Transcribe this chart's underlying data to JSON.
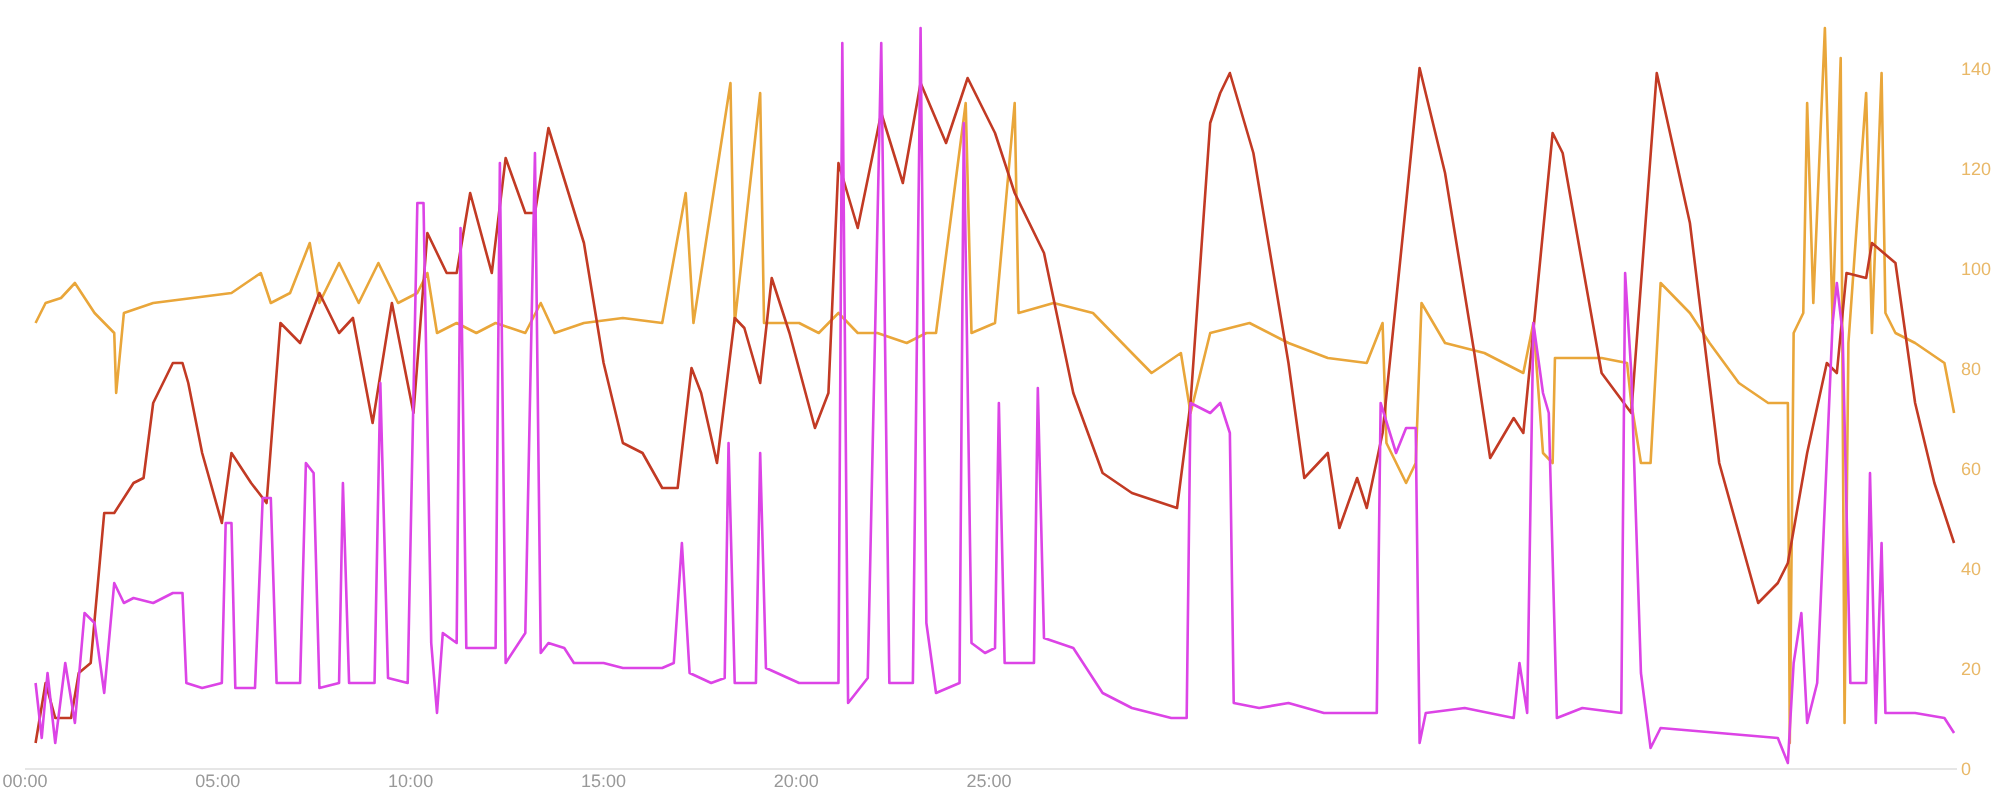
{
  "chart_data": {
    "type": "line",
    "xlim": [
      0,
      50.1
    ],
    "ylim": [
      0,
      152
    ],
    "xticks": [
      {
        "value": 0,
        "label": "00:00"
      },
      {
        "value": 5,
        "label": "05:00"
      },
      {
        "value": 10,
        "label": "10:00"
      },
      {
        "value": 15,
        "label": "15:00"
      },
      {
        "value": 20,
        "label": "20:00"
      },
      {
        "value": 25,
        "label": "25:00"
      }
    ],
    "yticks": [
      0,
      20,
      40,
      60,
      80,
      100,
      120,
      140
    ],
    "grid": false,
    "line_style": "solid",
    "marker": "none",
    "series": [
      {
        "color": "#e9a63a",
        "x": [
          0.3,
          0.56,
          0.96,
          1.32,
          1.83,
          2.34,
          2.39,
          2.59,
          3.35,
          4.37,
          5.38,
          6.14,
          6.4,
          6.9,
          7.41,
          7.66,
          8.17,
          8.68,
          9.19,
          9.7,
          10.2,
          10.46,
          10.71,
          11.22,
          11.73,
          12.23,
          13.0,
          13.4,
          13.76,
          14.52,
          15.53,
          16.55,
          17.16,
          17.36,
          18.32,
          18.43,
          19.09,
          19.19,
          20.1,
          20.61,
          21.12,
          21.62,
          22.13,
          22.89,
          23.4,
          23.65,
          24.42,
          24.57,
          25.18,
          25.69,
          25.79,
          26.7,
          27.72,
          28.73,
          29.24,
          30.0,
          30.25,
          30.76,
          31.78,
          32.79,
          33.81,
          34.82,
          35.23,
          35.33,
          35.84,
          36.09,
          36.24,
          36.85,
          37.87,
          38.88,
          39.14,
          39.39,
          39.64,
          39.7,
          40.91,
          41.57,
          41.68,
          41.93,
          42.18,
          42.44,
          43.2,
          43.71,
          44.47,
          45.23,
          45.74,
          45.79,
          45.89,
          46.14,
          46.24,
          46.4,
          46.7,
          46.9,
          47.11,
          47.21,
          47.31,
          47.77,
          47.92,
          48.17,
          48.27,
          48.53,
          49.04,
          49.8,
          50.05
        ],
        "values": [
          89,
          93,
          94,
          97,
          91,
          87,
          75,
          91,
          93,
          94,
          95,
          99,
          93,
          95,
          105,
          93,
          101,
          93,
          101,
          93,
          95,
          99,
          87,
          89,
          87,
          89,
          87,
          93,
          87,
          89,
          90,
          89,
          115,
          89,
          137,
          89,
          135,
          89,
          89,
          87,
          91,
          87,
          87,
          85,
          87,
          87,
          133,
          87,
          89,
          133,
          91,
          93,
          91,
          83,
          79,
          83,
          71,
          87,
          89,
          85,
          82,
          81,
          89,
          65,
          57,
          61,
          93,
          85,
          83,
          79,
          89,
          63,
          61,
          82,
          82,
          81,
          73,
          61,
          61,
          97,
          91,
          85,
          77,
          73,
          73,
          5,
          87,
          91,
          133,
          93,
          148,
          89,
          142,
          9,
          85,
          135,
          87,
          139,
          91,
          87,
          85,
          81,
          71
        ]
      },
      {
        "color": "#c23a24",
        "x": [
          0.3,
          0.56,
          0.81,
          1.22,
          1.42,
          1.73,
          2.08,
          2.34,
          2.84,
          3.1,
          3.35,
          3.86,
          4.11,
          4.26,
          4.62,
          5.13,
          5.38,
          5.89,
          6.29,
          6.65,
          7.16,
          7.66,
          8.17,
          8.53,
          9.04,
          9.54,
          10.1,
          10.46,
          10.96,
          11.22,
          11.57,
          12.13,
          12.49,
          13.0,
          13.25,
          13.6,
          14.52,
          15.03,
          15.53,
          16.04,
          16.55,
          16.95,
          17.31,
          17.56,
          17.97,
          18.43,
          18.68,
          19.09,
          19.39,
          19.85,
          20.51,
          20.86,
          21.12,
          21.62,
          22.23,
          22.79,
          23.25,
          23.91,
          24.47,
          25.18,
          25.69,
          26.45,
          27.21,
          27.97,
          28.73,
          29.9,
          30.25,
          30.76,
          31.02,
          31.27,
          31.88,
          32.79,
          33.2,
          33.81,
          34.11,
          34.57,
          34.82,
          35.23,
          35.84,
          36.19,
          36.85,
          37.61,
          38.02,
          38.63,
          38.88,
          39.64,
          39.9,
          40.91,
          41.68,
          42.34,
          43.2,
          43.96,
          44.97,
          45.48,
          45.74,
          46.24,
          46.75,
          47.01,
          47.26,
          47.77,
          47.92,
          48.53,
          49.04,
          49.54,
          50.05
        ],
        "values": [
          5,
          17,
          10,
          10,
          19,
          21,
          51,
          51,
          57,
          58,
          73,
          81,
          81,
          77,
          63,
          49,
          63,
          57,
          53,
          89,
          85,
          95,
          87,
          90,
          69,
          93,
          71,
          107,
          99,
          99,
          115,
          99,
          122,
          111,
          111,
          128,
          105,
          81,
          65,
          63,
          56,
          56,
          80,
          75,
          61,
          90,
          88,
          77,
          98,
          87,
          68,
          75,
          121,
          108,
          131,
          117,
          137,
          125,
          138,
          127,
          115,
          103,
          75,
          59,
          55,
          52,
          73,
          129,
          135,
          139,
          123,
          81,
          58,
          63,
          48,
          58,
          52,
          67,
          113,
          140,
          119,
          83,
          62,
          70,
          67,
          127,
          123,
          79,
          71,
          139,
          109,
          61,
          33,
          37,
          41,
          63,
          81,
          79,
          99,
          98,
          105,
          101,
          73,
          57,
          45
        ]
      },
      {
        "color": "#dc44e6",
        "x": [
          0.3,
          0.46,
          0.61,
          0.81,
          1.07,
          1.32,
          1.57,
          1.83,
          2.08,
          2.34,
          2.59,
          2.84,
          3.35,
          3.86,
          4.11,
          4.21,
          4.62,
          5.13,
          5.23,
          5.38,
          5.48,
          5.99,
          6.19,
          6.4,
          6.55,
          7.16,
          7.31,
          7.51,
          7.66,
          8.17,
          8.27,
          8.43,
          9.09,
          9.24,
          9.44,
          9.95,
          10.2,
          10.36,
          10.56,
          10.71,
          10.86,
          11.22,
          11.32,
          11.47,
          12.23,
          12.34,
          12.49,
          13.0,
          13.25,
          13.4,
          13.6,
          14.01,
          14.26,
          15.03,
          15.53,
          16.55,
          16.85,
          17.06,
          17.26,
          17.82,
          18.17,
          18.27,
          18.43,
          18.98,
          19.09,
          19.24,
          20.1,
          21.12,
          21.22,
          21.37,
          21.88,
          22.23,
          22.44,
          23.05,
          23.25,
          23.4,
          23.65,
          24.26,
          24.37,
          24.57,
          24.92,
          25.18,
          25.28,
          25.43,
          26.19,
          26.29,
          26.45,
          27.21,
          27.97,
          28.73,
          29.75,
          30.15,
          30.25,
          30.76,
          31.02,
          31.27,
          31.37,
          32.03,
          32.79,
          33.71,
          35.08,
          35.18,
          35.58,
          35.84,
          36.09,
          36.19,
          36.35,
          37.36,
          38.63,
          38.78,
          38.98,
          39.14,
          39.39,
          39.54,
          39.75,
          40.41,
          41.42,
          41.52,
          41.68,
          41.93,
          42.18,
          42.44,
          43.96,
          45.48,
          45.74,
          45.89,
          46.09,
          46.24,
          46.5,
          46.9,
          47.01,
          47.16,
          47.36,
          47.77,
          47.87,
          48.02,
          48.17,
          48.27,
          49.04,
          49.8,
          50.05
        ],
        "values": [
          17,
          6,
          19,
          5,
          21,
          9,
          31,
          29,
          15,
          37,
          33,
          34,
          33,
          35,
          35,
          17,
          16,
          17,
          49,
          49,
          16,
          16,
          54,
          54,
          17,
          17,
          61,
          59,
          16,
          17,
          57,
          17,
          17,
          77,
          18,
          17,
          113,
          113,
          25,
          11,
          27,
          25,
          108,
          24,
          24,
          121,
          21,
          27,
          123,
          23,
          25,
          24,
          21,
          21,
          20,
          20,
          21,
          45,
          19,
          17,
          18,
          65,
          17,
          17,
          63,
          20,
          17,
          17,
          145,
          13,
          18,
          145,
          17,
          17,
          148,
          29,
          15,
          17,
          129,
          25,
          23,
          24,
          73,
          21,
          21,
          76,
          26,
          24,
          15,
          12,
          10,
          10,
          73,
          71,
          73,
          67,
          13,
          12,
          13,
          11,
          11,
          73,
          63,
          68,
          68,
          5,
          11,
          12,
          10,
          21,
          11,
          89,
          75,
          71,
          10,
          12,
          11,
          99,
          79,
          19,
          4,
          8,
          7,
          6,
          1,
          21,
          31,
          9,
          17,
          89,
          97,
          87,
          17,
          17,
          59,
          9,
          45,
          11,
          11,
          10,
          7
        ]
      }
    ]
  }
}
